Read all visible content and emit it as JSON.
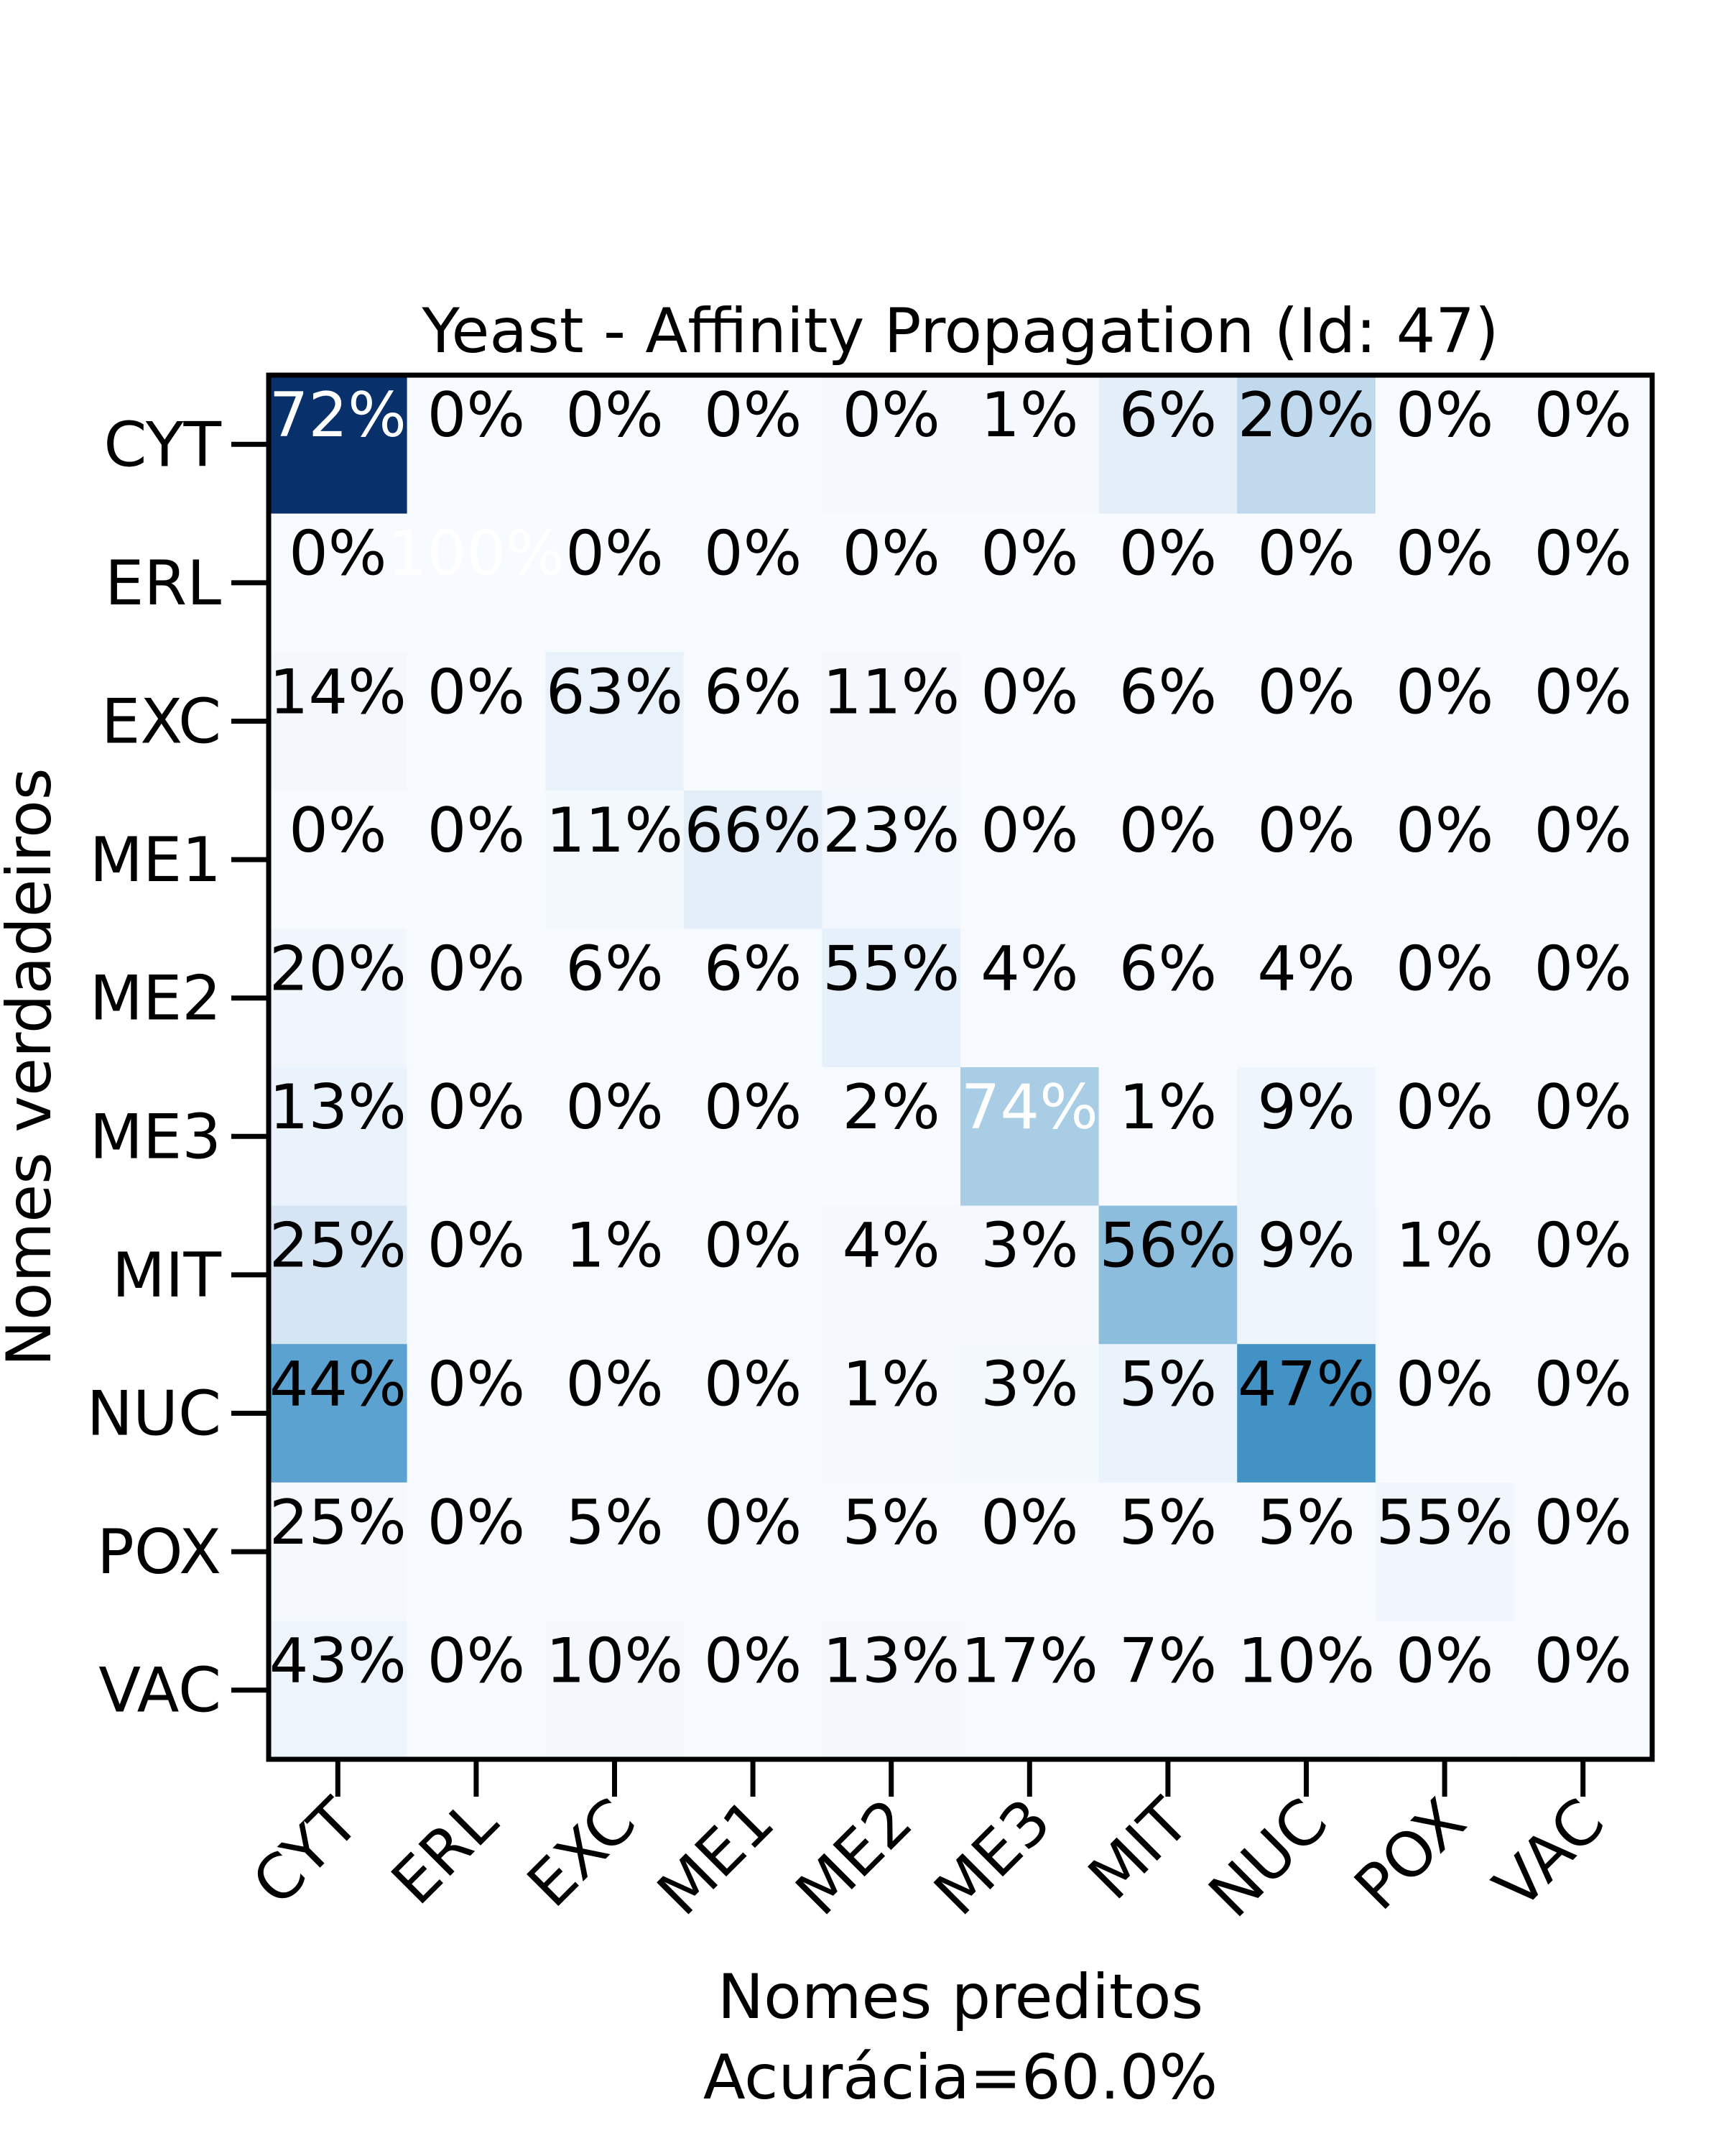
{
  "chart_data": {
    "type": "heatmap",
    "title": "Yeast - Affinity Propagation (Id: 47)",
    "xlabel": "Nomes preditos",
    "ylabel": "Nomes verdadeiros",
    "subtitle": "Acurácia=60.0%",
    "x_categories": [
      "CYT",
      "ERL",
      "EXC",
      "ME1",
      "ME2",
      "ME3",
      "MIT",
      "NUC",
      "POX",
      "VAC"
    ],
    "y_categories": [
      "CYT",
      "ERL",
      "EXC",
      "ME1",
      "ME2",
      "ME3",
      "MIT",
      "NUC",
      "POX",
      "VAC"
    ],
    "values": [
      [
        72,
        0,
        0,
        0,
        0,
        1,
        6,
        20,
        0,
        0
      ],
      [
        0,
        100,
        0,
        0,
        0,
        0,
        0,
        0,
        0,
        0
      ],
      [
        14,
        0,
        63,
        6,
        11,
        0,
        6,
        0,
        0,
        0
      ],
      [
        0,
        0,
        11,
        66,
        23,
        0,
        0,
        0,
        0,
        0
      ],
      [
        20,
        0,
        6,
        6,
        55,
        4,
        6,
        4,
        0,
        0
      ],
      [
        13,
        0,
        0,
        0,
        2,
        74,
        1,
        9,
        0,
        0
      ],
      [
        25,
        0,
        1,
        0,
        4,
        3,
        56,
        9,
        1,
        0
      ],
      [
        44,
        0,
        0,
        0,
        1,
        3,
        5,
        47,
        0,
        0
      ],
      [
        25,
        0,
        5,
        0,
        5,
        0,
        5,
        5,
        55,
        0
      ],
      [
        43,
        0,
        10,
        0,
        13,
        17,
        7,
        10,
        0,
        0
      ]
    ],
    "cell_labels": [
      [
        "72%",
        "0%",
        "0%",
        "0%",
        "0%",
        "1%",
        "6%",
        "20%",
        "0%",
        "0%"
      ],
      [
        "0%",
        "100%",
        "0%",
        "0%",
        "0%",
        "0%",
        "0%",
        "0%",
        "0%",
        "0%"
      ],
      [
        "14%",
        "0%",
        "63%",
        "6%",
        "11%",
        "0%",
        "6%",
        "0%",
        "0%",
        "0%"
      ],
      [
        "0%",
        "0%",
        "11%",
        "66%",
        "23%",
        "0%",
        "0%",
        "0%",
        "0%",
        "0%"
      ],
      [
        "20%",
        "0%",
        "6%",
        "6%",
        "55%",
        "4%",
        "6%",
        "4%",
        "0%",
        "0%"
      ],
      [
        "13%",
        "0%",
        "0%",
        "0%",
        "2%",
        "74%",
        "1%",
        "9%",
        "0%",
        "0%"
      ],
      [
        "25%",
        "0%",
        "1%",
        "0%",
        "4%",
        "3%",
        "56%",
        "9%",
        "1%",
        "0%"
      ],
      [
        "44%",
        "0%",
        "0%",
        "0%",
        "1%",
        "3%",
        "5%",
        "47%",
        "0%",
        "0%"
      ],
      [
        "25%",
        "0%",
        "5%",
        "0%",
        "5%",
        "0%",
        "5%",
        "5%",
        "55%",
        "0%"
      ],
      [
        "43%",
        "0%",
        "10%",
        "0%",
        "13%",
        "17%",
        "7%",
        "10%",
        "0%",
        "0%"
      ]
    ],
    "colormap": "Blues",
    "cell_colors": [
      [
        "#08306b",
        "#f7fbff",
        "#f7fbff",
        "#f7fbff",
        "#f5f9fe",
        "#f5f9fe",
        "#e3eef9",
        "#c1d9ed",
        "#f7fbff",
        "#f7fbff"
      ],
      [
        "#f7fbff",
        "#f7fbff",
        "#f7fbff",
        "#f7fbff",
        "#f7fbff",
        "#f7fbff",
        "#f7fbff",
        "#f7fbff",
        "#f7fbff",
        "#f7fbff"
      ],
      [
        "#f4f8fd",
        "#f7fbff",
        "#e9f2fb",
        "#f7fbff",
        "#f4f8fd",
        "#f7fbff",
        "#f7fbff",
        "#f7fbff",
        "#f7fbff",
        "#f7fbff"
      ],
      [
        "#f7fbff",
        "#f7fbff",
        "#f3f8fd",
        "#e3eef9",
        "#f1f7fd",
        "#f7fbff",
        "#f7fbff",
        "#f7fbff",
        "#f7fbff",
        "#f7fbff"
      ],
      [
        "#f1f6fc",
        "#f7fbff",
        "#f6faff",
        "#f6faff",
        "#e6f0fa",
        "#f6faff",
        "#f6faff",
        "#f6faff",
        "#f7fbff",
        "#f7fbff"
      ],
      [
        "#eaf2fb",
        "#f7fbff",
        "#f7fbff",
        "#f7fbff",
        "#f7fbff",
        "#a8cde4",
        "#f7fbff",
        "#eef5fc",
        "#f7fbff",
        "#f7fbff"
      ],
      [
        "#d5e5f4",
        "#f7fbff",
        "#f6faff",
        "#f7fbff",
        "#f5f9fe",
        "#f5f9fe",
        "#8cbddd",
        "#eef5fc",
        "#f6faff",
        "#f7fbff"
      ],
      [
        "#5ba2d0",
        "#f7fbff",
        "#f7fbff",
        "#f7fbff",
        "#f5f9fe",
        "#f3f8fd",
        "#eaf2fb",
        "#4392c6",
        "#f7fbff",
        "#f7fbff"
      ],
      [
        "#f5f9fe",
        "#f7fbff",
        "#f7fbff",
        "#f7fbff",
        "#f7fbff",
        "#f7fbff",
        "#f7fbff",
        "#f7fbff",
        "#f1f6fc",
        "#f7fbff"
      ],
      [
        "#edf4fc",
        "#f7fbff",
        "#f4f8fd",
        "#f7fbff",
        "#f4f8fd",
        "#f6faff",
        "#f6faff",
        "#f6faff",
        "#f7fbff",
        "#f7fbff"
      ]
    ],
    "light_text_cells": [
      [
        0,
        0
      ],
      [
        1,
        1
      ],
      [
        5,
        5
      ]
    ],
    "grid": false,
    "legend": "none"
  }
}
